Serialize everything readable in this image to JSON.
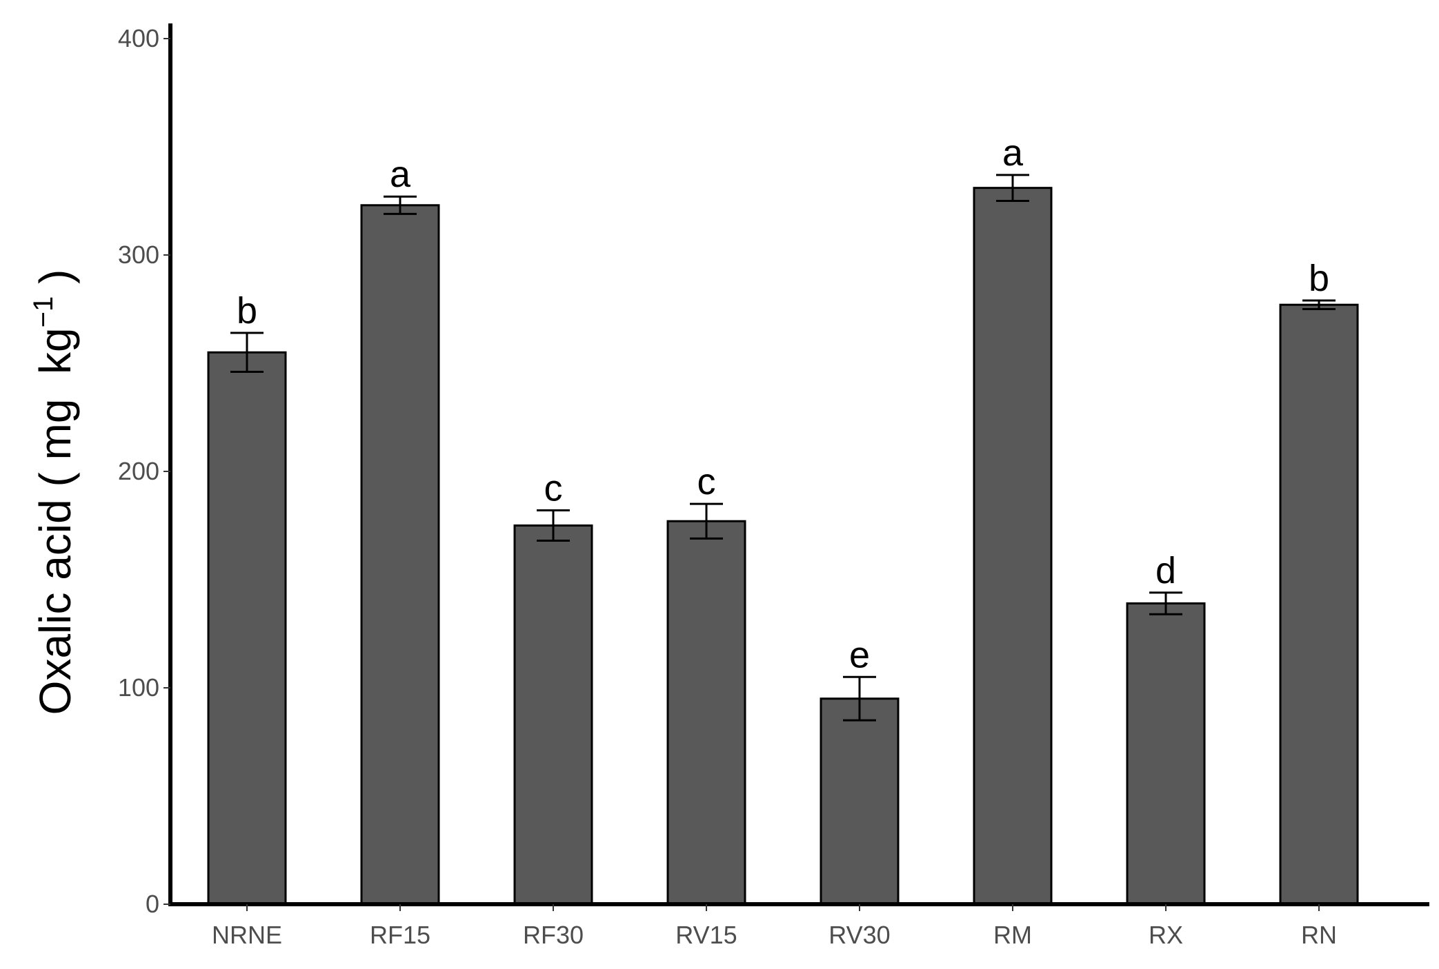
{
  "chart_data": {
    "type": "bar",
    "categories": [
      "NRNE",
      "RF15",
      "RF30",
      "RV15",
      "RV30",
      "RM",
      "RX",
      "RN"
    ],
    "values": [
      255,
      323,
      175,
      177,
      95,
      331,
      139,
      277
    ],
    "errors": [
      9,
      4,
      7,
      8,
      10,
      6,
      5,
      2
    ],
    "significance_labels": [
      "b",
      "a",
      "c",
      "c",
      "e",
      "a",
      "d",
      "b"
    ],
    "ylabel": {
      "text": "Oxalic acid ( mg  kg",
      "superscript": "−1",
      "closing": " )"
    },
    "xlabel": "",
    "ylim": [
      0,
      405
    ],
    "yticks": [
      0,
      100,
      200,
      300,
      400
    ],
    "grid": false,
    "legend": "none",
    "colors": {
      "bar_fill": "#595959",
      "bar_stroke": "#000000",
      "axis": "#000000",
      "tick_text": "#4d4d4d"
    }
  }
}
